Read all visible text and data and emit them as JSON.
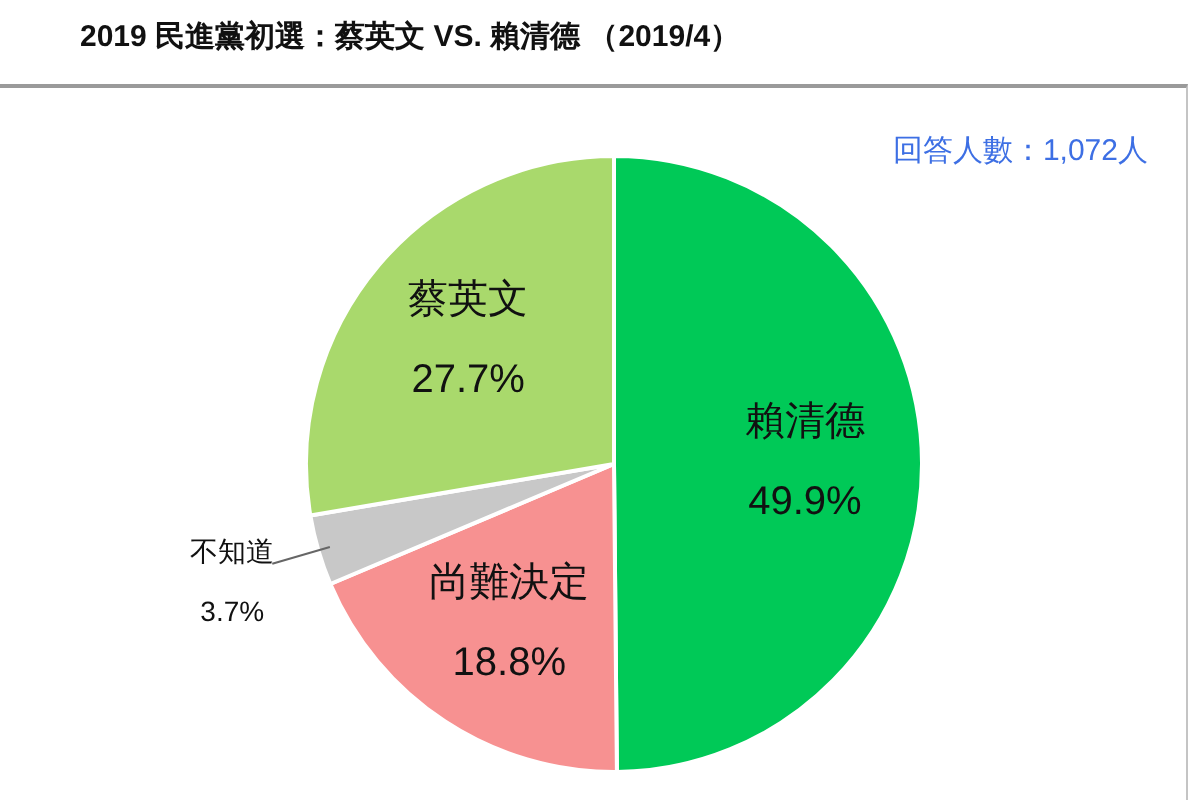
{
  "chart_data": {
    "type": "pie",
    "title": "2019 民進黨初選：蔡英文 VS. 賴清德 （2019/4）",
    "categories": [
      "賴清德",
      "尚難決定",
      "不知道",
      "蔡英文"
    ],
    "values": [
      49.9,
      18.8,
      3.7,
      27.7
    ],
    "colors": [
      "#00c957",
      "#f79191",
      "#c8c8c8",
      "#a9d96c"
    ],
    "value_labels": [
      "49.9%",
      "18.8%",
      "3.7%",
      "27.7%"
    ],
    "annotations": [
      "回答人數：1,072人"
    ]
  }
}
